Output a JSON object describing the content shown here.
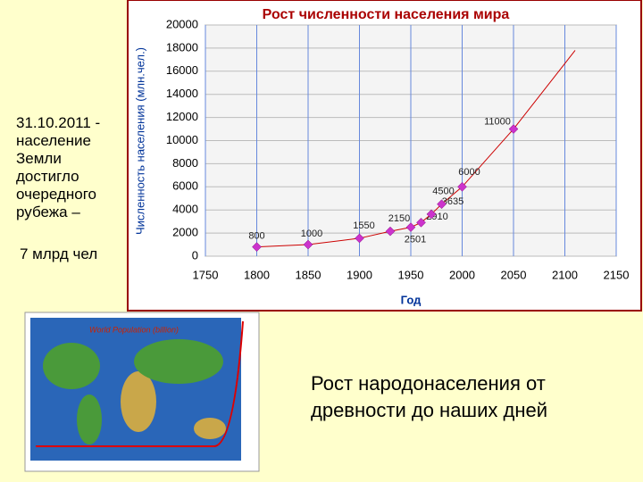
{
  "side_text": "31.10.2011 - население Земли достигло очередного рубежа –",
  "side_value": "7 млрд чел",
  "caption": "Рост народонаселения от древности до наших дней",
  "map_title": "World Population (billion)",
  "chart_data": {
    "type": "line",
    "title": "Рост численности населения мира",
    "y_label": "Численность населения (млн.чел.)",
    "x_label": "Год",
    "x": [
      1800,
      1850,
      1900,
      1930,
      1950,
      1960,
      1970,
      1980,
      2000,
      2050
    ],
    "values": [
      800,
      1000,
      1550,
      2150,
      2501,
      2910,
      3635,
      4500,
      6000,
      11000
    ],
    "color": "#cc0000",
    "marker_color": "#cc33cc",
    "trend": {
      "x": [
        2050,
        2110
      ],
      "values": [
        11000,
        17800
      ]
    },
    "xlim": [
      1750,
      2150
    ],
    "xticks": [
      1750,
      1800,
      1850,
      1900,
      1950,
      2000,
      2050,
      2100,
      2150
    ],
    "ylim": [
      0,
      20000
    ],
    "yticks": [
      0,
      2000,
      4000,
      6000,
      8000,
      10000,
      12000,
      14000,
      16000,
      18000,
      20000
    ],
    "grid": true
  }
}
